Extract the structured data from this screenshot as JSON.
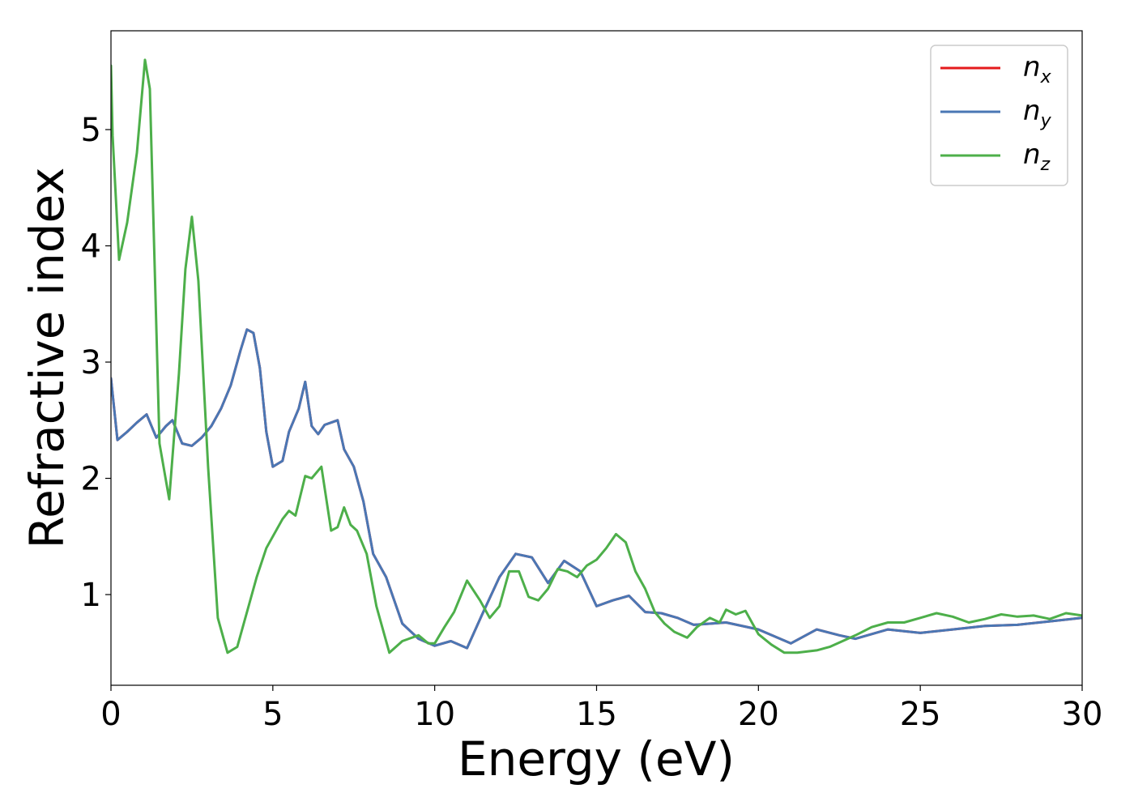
{
  "chart_data": {
    "type": "line",
    "title": "",
    "xlabel": "Energy (eV)",
    "ylabel": "Refractive index",
    "xlim": [
      0,
      30
    ],
    "ylim": [
      0.22,
      5.85
    ],
    "xticks": [
      0,
      5,
      10,
      15,
      20,
      25,
      30
    ],
    "yticks": [
      1,
      2,
      3,
      4,
      5
    ],
    "grid": false,
    "legend_position": "top-right",
    "series": [
      {
        "name": "n_x",
        "label_main": "n",
        "label_sub": "x",
        "color": "#e41a1c",
        "x": [
          0,
          0.2,
          0.5,
          0.8,
          1.1,
          1.4,
          1.7,
          1.9,
          2.2,
          2.5,
          2.8,
          3.1,
          3.4,
          3.7,
          4.0,
          4.2,
          4.4,
          4.6,
          4.8,
          5.0,
          5.3,
          5.5,
          5.8,
          6.0,
          6.2,
          6.4,
          6.6,
          6.8,
          7.0,
          7.2,
          7.5,
          7.8,
          8.1,
          8.5,
          9.0,
          9.5,
          10.0,
          10.5,
          11.0,
          11.5,
          12.0,
          12.5,
          13.0,
          13.5,
          14.0,
          14.5,
          15.0,
          15.5,
          16.0,
          16.5,
          17.0,
          17.5,
          18.0,
          19.0,
          20.0,
          21.0,
          21.8,
          22.5,
          23.0,
          24.0,
          25.0,
          26.0,
          27.0,
          28.0,
          29.0,
          30.0
        ],
        "y": [
          2.86,
          2.33,
          2.4,
          2.48,
          2.55,
          2.35,
          2.45,
          2.5,
          2.3,
          2.28,
          2.35,
          2.45,
          2.6,
          2.8,
          3.1,
          3.28,
          3.25,
          2.95,
          2.4,
          2.1,
          2.15,
          2.4,
          2.6,
          2.83,
          2.45,
          2.38,
          2.46,
          2.48,
          2.5,
          2.25,
          2.1,
          1.8,
          1.35,
          1.15,
          0.75,
          0.62,
          0.56,
          0.6,
          0.54,
          0.85,
          1.15,
          1.35,
          1.32,
          1.1,
          1.29,
          1.2,
          0.9,
          0.95,
          0.99,
          0.85,
          0.84,
          0.8,
          0.74,
          0.76,
          0.7,
          0.58,
          0.7,
          0.65,
          0.62,
          0.7,
          0.67,
          0.7,
          0.73,
          0.74,
          0.77,
          0.8
        ]
      },
      {
        "name": "n_y",
        "label_main": "n",
        "label_sub": "y",
        "color": "#4a77b4",
        "x": [
          0,
          0.2,
          0.5,
          0.8,
          1.1,
          1.4,
          1.7,
          1.9,
          2.2,
          2.5,
          2.8,
          3.1,
          3.4,
          3.7,
          4.0,
          4.2,
          4.4,
          4.6,
          4.8,
          5.0,
          5.3,
          5.5,
          5.8,
          6.0,
          6.2,
          6.4,
          6.6,
          6.8,
          7.0,
          7.2,
          7.5,
          7.8,
          8.1,
          8.5,
          9.0,
          9.5,
          10.0,
          10.5,
          11.0,
          11.5,
          12.0,
          12.5,
          13.0,
          13.5,
          14.0,
          14.5,
          15.0,
          15.5,
          16.0,
          16.5,
          17.0,
          17.5,
          18.0,
          19.0,
          20.0,
          21.0,
          21.8,
          22.5,
          23.0,
          24.0,
          25.0,
          26.0,
          27.0,
          28.0,
          29.0,
          30.0
        ],
        "y": [
          2.86,
          2.33,
          2.4,
          2.48,
          2.55,
          2.35,
          2.45,
          2.5,
          2.3,
          2.28,
          2.35,
          2.45,
          2.6,
          2.8,
          3.1,
          3.28,
          3.25,
          2.95,
          2.4,
          2.1,
          2.15,
          2.4,
          2.6,
          2.83,
          2.45,
          2.38,
          2.46,
          2.48,
          2.5,
          2.25,
          2.1,
          1.8,
          1.35,
          1.15,
          0.75,
          0.62,
          0.56,
          0.6,
          0.54,
          0.85,
          1.15,
          1.35,
          1.32,
          1.1,
          1.29,
          1.2,
          0.9,
          0.95,
          0.99,
          0.85,
          0.84,
          0.8,
          0.74,
          0.76,
          0.7,
          0.58,
          0.7,
          0.65,
          0.62,
          0.7,
          0.67,
          0.7,
          0.73,
          0.74,
          0.77,
          0.8
        ]
      },
      {
        "name": "n_z",
        "label_main": "n",
        "label_sub": "z",
        "color": "#4daf4a",
        "x": [
          0,
          0.05,
          0.25,
          0.5,
          0.8,
          1.05,
          1.2,
          1.5,
          1.8,
          2.1,
          2.3,
          2.5,
          2.7,
          3.0,
          3.3,
          3.6,
          3.9,
          4.2,
          4.5,
          4.8,
          5.0,
          5.3,
          5.5,
          5.7,
          6.0,
          6.2,
          6.5,
          6.8,
          7.0,
          7.2,
          7.4,
          7.6,
          7.9,
          8.2,
          8.6,
          9.0,
          9.5,
          9.8,
          10.0,
          10.3,
          10.6,
          11.0,
          11.4,
          11.7,
          12.0,
          12.3,
          12.6,
          12.9,
          13.2,
          13.5,
          13.8,
          14.1,
          14.4,
          14.7,
          15.0,
          15.3,
          15.6,
          15.9,
          16.2,
          16.5,
          16.8,
          17.1,
          17.4,
          17.8,
          18.1,
          18.5,
          18.8,
          19.0,
          19.3,
          19.6,
          20.0,
          20.4,
          20.8,
          21.2,
          21.8,
          22.2,
          22.6,
          23.0,
          23.5,
          24.0,
          24.5,
          25.0,
          25.5,
          26.0,
          26.5,
          27.0,
          27.5,
          28.0,
          28.5,
          29.0,
          29.5,
          30.0
        ],
        "y": [
          5.55,
          4.95,
          3.88,
          4.2,
          4.8,
          5.6,
          5.35,
          2.3,
          1.82,
          2.9,
          3.8,
          4.25,
          3.7,
          2.1,
          0.8,
          0.5,
          0.55,
          0.85,
          1.15,
          1.4,
          1.5,
          1.65,
          1.72,
          1.68,
          2.02,
          2.0,
          2.1,
          1.55,
          1.58,
          1.75,
          1.6,
          1.55,
          1.35,
          0.9,
          0.5,
          0.6,
          0.65,
          0.58,
          0.58,
          0.72,
          0.85,
          1.12,
          0.95,
          0.8,
          0.9,
          1.2,
          1.2,
          0.98,
          0.95,
          1.05,
          1.22,
          1.2,
          1.15,
          1.25,
          1.3,
          1.4,
          1.52,
          1.45,
          1.2,
          1.05,
          0.85,
          0.75,
          0.68,
          0.63,
          0.72,
          0.8,
          0.76,
          0.87,
          0.83,
          0.86,
          0.66,
          0.57,
          0.5,
          0.5,
          0.52,
          0.55,
          0.6,
          0.65,
          0.72,
          0.76,
          0.76,
          0.8,
          0.84,
          0.81,
          0.76,
          0.79,
          0.83,
          0.81,
          0.82,
          0.79,
          0.84,
          0.82
        ]
      }
    ]
  }
}
